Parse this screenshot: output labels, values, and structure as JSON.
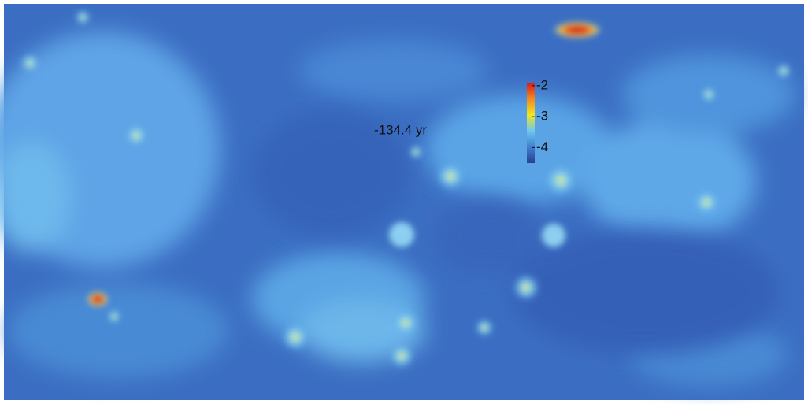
{
  "map": {
    "time_label": "-134.4 yr",
    "colorbar": {
      "lim": [
        -4.5,
        -1.9
      ],
      "ticks": [
        -4,
        -3,
        -2
      ],
      "colors": [
        "#2b3f8f",
        "#3f7fd0",
        "#6ec6f0",
        "#f2e51e",
        "#f08a1e",
        "#d7191c"
      ]
    }
  }
}
